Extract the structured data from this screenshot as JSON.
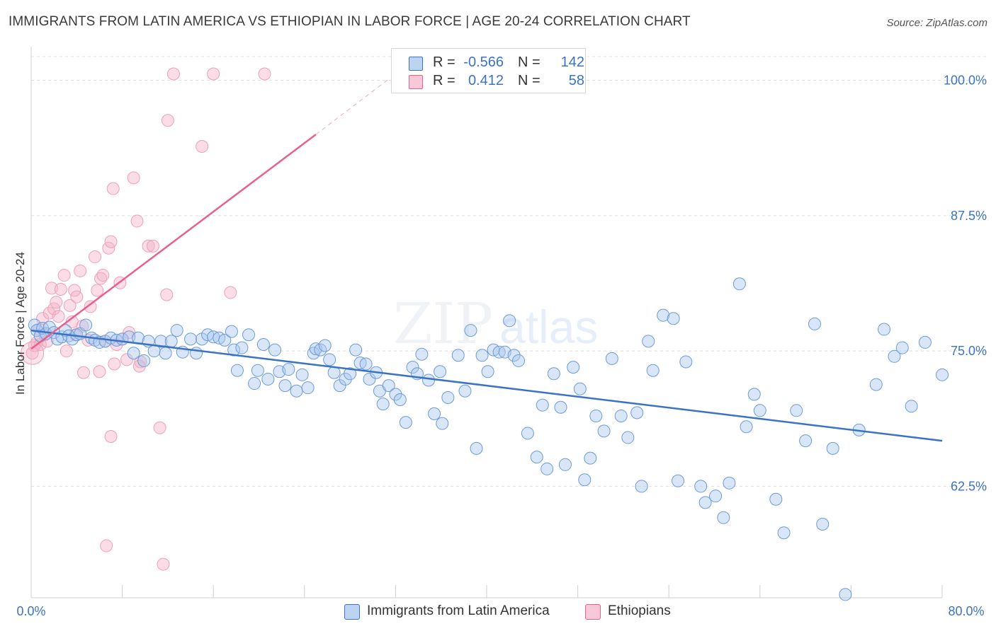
{
  "header": {
    "title": "IMMIGRANTS FROM LATIN AMERICA VS ETHIOPIAN IN LABOR FORCE | AGE 20-24 CORRELATION CHART",
    "source": "Source: ZipAtlas.com"
  },
  "colors": {
    "blue": "#3b73c4",
    "blue_fill": "#a9c8ef",
    "pink": "#e8608e",
    "pink_fill": "#f4b3c8"
  },
  "legend": {
    "rows": [
      {
        "r_label": "R =",
        "r_value": "-0.566",
        "n_label": "N =",
        "n_value": "142"
      },
      {
        "r_label": "R =",
        "r_value": "0.412",
        "n_label": "N =",
        "n_value": "58"
      }
    ]
  },
  "bottom_legend": {
    "series1": "Immigrants from Latin America",
    "series2": "Ethiopians"
  },
  "chart_data": {
    "type": "scatter",
    "title": "IMMIGRANTS FROM LATIN AMERICA VS ETHIOPIAN IN LABOR FORCE | AGE 20-24 CORRELATION CHART",
    "ylabel": "In Labor Force | Age 20-24",
    "xlabel": "",
    "xlim": [
      0,
      80
    ],
    "ylim": [
      52.2,
      102.2
    ],
    "x_tick_labels": [
      "0.0%",
      "80.0%"
    ],
    "y_ticks": [
      62.5,
      75.0,
      87.5,
      100.0
    ],
    "y_tick_labels": [
      "62.5%",
      "75.0%",
      "87.5%",
      "100.0%"
    ],
    "grid": true,
    "legend_position": "top-center",
    "series": [
      {
        "name": "Immigrants from Latin America",
        "r": -0.566,
        "n": 142,
        "trend": [
          [
            0,
            76.9
          ],
          [
            80,
            66.7
          ]
        ],
        "points": [
          [
            0.3,
            77.4
          ],
          [
            0.5,
            76.9
          ],
          [
            0.8,
            76.4
          ],
          [
            1.0,
            77.1
          ],
          [
            1.3,
            76.6
          ],
          [
            1.6,
            77.2
          ],
          [
            2.0,
            76.7
          ],
          [
            2.3,
            76.1
          ],
          [
            2.7,
            76.3
          ],
          [
            3.0,
            76.9
          ],
          [
            3.3,
            76.4
          ],
          [
            3.6,
            76.1
          ],
          [
            4.0,
            76.5
          ],
          [
            4.3,
            76.6
          ],
          [
            4.8,
            77.4
          ],
          [
            5.3,
            76.2
          ],
          [
            5.6,
            76.0
          ],
          [
            6.0,
            75.8
          ],
          [
            6.5,
            75.9
          ],
          [
            7.0,
            76.2
          ],
          [
            7.5,
            76.0
          ],
          [
            8.0,
            76.1
          ],
          [
            8.6,
            76.3
          ],
          [
            9.0,
            74.8
          ],
          [
            9.4,
            76.2
          ],
          [
            9.9,
            74.1
          ],
          [
            10.3,
            75.9
          ],
          [
            10.8,
            75.0
          ],
          [
            11.4,
            75.9
          ],
          [
            11.8,
            74.8
          ],
          [
            12.3,
            75.9
          ],
          [
            12.8,
            76.9
          ],
          [
            13.3,
            74.9
          ],
          [
            14.0,
            76.1
          ],
          [
            14.5,
            74.8
          ],
          [
            15.0,
            76.1
          ],
          [
            15.5,
            76.5
          ],
          [
            16.0,
            76.3
          ],
          [
            16.5,
            76.2
          ],
          [
            17.0,
            76.0
          ],
          [
            17.6,
            76.8
          ],
          [
            17.8,
            75.1
          ],
          [
            18.1,
            73.2
          ],
          [
            18.5,
            75.3
          ],
          [
            19.1,
            76.5
          ],
          [
            19.6,
            72.0
          ],
          [
            19.9,
            73.2
          ],
          [
            20.4,
            75.6
          ],
          [
            20.8,
            72.4
          ],
          [
            21.4,
            75.1
          ],
          [
            21.8,
            73.1
          ],
          [
            22.3,
            71.8
          ],
          [
            22.6,
            73.3
          ],
          [
            23.3,
            71.3
          ],
          [
            23.8,
            72.8
          ],
          [
            24.3,
            71.6
          ],
          [
            24.8,
            74.8
          ],
          [
            25.0,
            75.2
          ],
          [
            25.4,
            75.1
          ],
          [
            25.8,
            75.5
          ],
          [
            26.2,
            74.2
          ],
          [
            26.6,
            73.0
          ],
          [
            27.1,
            71.8
          ],
          [
            27.6,
            72.4
          ],
          [
            28.0,
            72.9
          ],
          [
            28.5,
            75.1
          ],
          [
            28.9,
            73.9
          ],
          [
            29.4,
            73.8
          ],
          [
            29.7,
            72.4
          ],
          [
            30.3,
            73.0
          ],
          [
            30.6,
            71.3
          ],
          [
            30.9,
            70.1
          ],
          [
            31.4,
            71.8
          ],
          [
            32.0,
            71.0
          ],
          [
            32.4,
            70.5
          ],
          [
            32.9,
            68.4
          ],
          [
            33.5,
            73.5
          ],
          [
            33.9,
            72.9
          ],
          [
            34.3,
            74.7
          ],
          [
            34.9,
            72.3
          ],
          [
            35.4,
            69.2
          ],
          [
            35.9,
            73.1
          ],
          [
            36.1,
            68.3
          ],
          [
            36.6,
            70.7
          ],
          [
            37.5,
            74.6
          ],
          [
            38.1,
            71.3
          ],
          [
            38.6,
            76.9
          ],
          [
            39.1,
            66.0
          ],
          [
            39.6,
            74.6
          ],
          [
            40.1,
            73.1
          ],
          [
            40.6,
            75.1
          ],
          [
            41.1,
            74.9
          ],
          [
            41.6,
            74.9
          ],
          [
            42.0,
            77.8
          ],
          [
            42.4,
            74.6
          ],
          [
            42.8,
            74.1
          ],
          [
            43.6,
            67.4
          ],
          [
            44.4,
            65.2
          ],
          [
            44.9,
            70.0
          ],
          [
            45.3,
            64.1
          ],
          [
            45.9,
            72.9
          ],
          [
            46.5,
            69.8
          ],
          [
            46.9,
            64.5
          ],
          [
            47.6,
            73.5
          ],
          [
            48.2,
            71.5
          ],
          [
            48.6,
            63.1
          ],
          [
            49.1,
            65.1
          ],
          [
            49.6,
            69.0
          ],
          [
            50.3,
            67.6
          ],
          [
            51.0,
            74.3
          ],
          [
            51.8,
            69.0
          ],
          [
            52.4,
            67.0
          ],
          [
            53.2,
            69.3
          ],
          [
            53.6,
            62.5
          ],
          [
            54.2,
            75.9
          ],
          [
            54.6,
            73.2
          ],
          [
            55.5,
            78.3
          ],
          [
            56.4,
            78.0
          ],
          [
            56.8,
            63.0
          ],
          [
            57.5,
            74.0
          ],
          [
            58.8,
            62.5
          ],
          [
            59.2,
            61.0
          ],
          [
            60.1,
            61.6
          ],
          [
            60.8,
            59.6
          ],
          [
            61.3,
            62.8
          ],
          [
            62.2,
            81.2
          ],
          [
            62.8,
            68.0
          ],
          [
            63.5,
            71.0
          ],
          [
            64.0,
            69.5
          ],
          [
            65.4,
            61.3
          ],
          [
            66.1,
            58.2
          ],
          [
            67.2,
            69.5
          ],
          [
            68.0,
            66.7
          ],
          [
            68.8,
            77.5
          ],
          [
            69.5,
            59.0
          ],
          [
            70.4,
            66.0
          ],
          [
            71.5,
            52.5
          ],
          [
            72.7,
            67.7
          ],
          [
            74.2,
            71.9
          ],
          [
            74.9,
            77.0
          ],
          [
            75.8,
            74.5
          ],
          [
            76.5,
            75.3
          ],
          [
            77.3,
            69.9
          ],
          [
            78.5,
            75.8
          ],
          [
            80.0,
            72.8
          ]
        ]
      },
      {
        "name": "Ethiopians",
        "r": 0.412,
        "n": 58,
        "trend": [
          [
            0,
            75.2
          ],
          [
            25,
            95.0
          ]
        ],
        "trend_dashed": [
          [
            25,
            95.0
          ],
          [
            31.5,
            100.2
          ]
        ],
        "points": [
          [
            0.1,
            74.8
          ],
          [
            0.3,
            75.5
          ],
          [
            0.5,
            75.8
          ],
          [
            0.7,
            77.0
          ],
          [
            0.8,
            75.6
          ],
          [
            1.0,
            78.0
          ],
          [
            1.2,
            76.5
          ],
          [
            1.4,
            75.9
          ],
          [
            1.6,
            78.5
          ],
          [
            1.8,
            80.8
          ],
          [
            2.0,
            78.9
          ],
          [
            2.2,
            79.5
          ],
          [
            2.4,
            78.2
          ],
          [
            2.6,
            80.7
          ],
          [
            2.9,
            82.0
          ],
          [
            3.1,
            75.0
          ],
          [
            3.4,
            79.2
          ],
          [
            3.6,
            77.7
          ],
          [
            3.8,
            80.6
          ],
          [
            3.9,
            76.5
          ],
          [
            4.0,
            80.0
          ],
          [
            4.3,
            82.4
          ],
          [
            4.5,
            77.3
          ],
          [
            4.6,
            73.0
          ],
          [
            5.0,
            76.0
          ],
          [
            5.2,
            79.1
          ],
          [
            5.6,
            83.7
          ],
          [
            5.8,
            80.6
          ],
          [
            6.0,
            73.1
          ],
          [
            6.1,
            81.7
          ],
          [
            6.3,
            82.0
          ],
          [
            6.5,
            75.9
          ],
          [
            6.8,
            84.5
          ],
          [
            7.0,
            85.1
          ],
          [
            7.3,
            73.8
          ],
          [
            7.5,
            75.6
          ],
          [
            7.8,
            81.3
          ],
          [
            8.0,
            76.1
          ],
          [
            8.4,
            74.2
          ],
          [
            8.6,
            76.7
          ],
          [
            9.0,
            91.0
          ],
          [
            9.6,
            74.0
          ],
          [
            10.3,
            84.7
          ],
          [
            11.3,
            67.9
          ],
          [
            11.6,
            55.3
          ],
          [
            12.0,
            96.3
          ],
          [
            11.9,
            80.2
          ],
          [
            12.5,
            100.6
          ],
          [
            15.0,
            93.9
          ],
          [
            16.0,
            100.6
          ],
          [
            17.5,
            80.4
          ],
          [
            20.5,
            100.6
          ],
          [
            6.6,
            57.0
          ],
          [
            7.0,
            67.1
          ],
          [
            7.2,
            90.0
          ],
          [
            9.3,
            87.0
          ],
          [
            9.5,
            73.6
          ],
          [
            10.7,
            84.7
          ]
        ]
      }
    ]
  }
}
